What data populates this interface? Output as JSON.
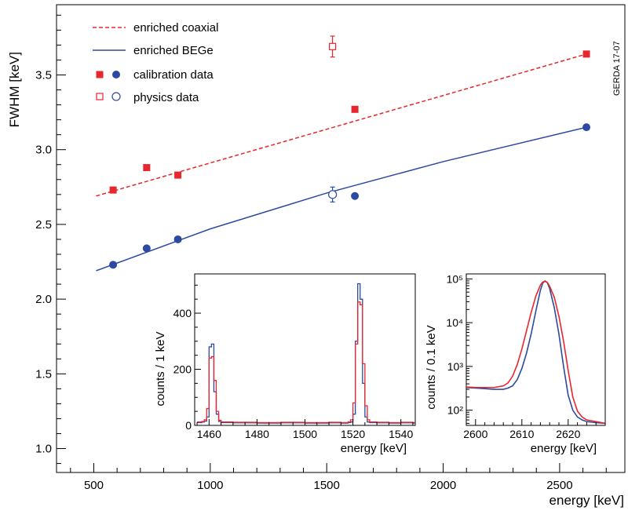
{
  "chart_data": [
    {
      "type": "scatter",
      "title": "",
      "xlabel": "energy [keV]",
      "ylabel": "FWHM [keV]",
      "xlim": [
        340,
        2780
      ],
      "ylim": [
        0.84,
        3.97
      ],
      "x_ticks": [
        500,
        1000,
        1500,
        2000,
        2500
      ],
      "x_tick_labels": [
        "500",
        "1000",
        "1500",
        "2000",
        "2500"
      ],
      "y_ticks": [
        1.0,
        1.5,
        2.0,
        2.5,
        3.0,
        3.5
      ],
      "y_tick_labels": [
        "1.0",
        "1.5",
        "2.0",
        "2.5",
        "3.0",
        "3.5"
      ],
      "stamp": "GERDA 17-07",
      "legend": {
        "position": "top-left",
        "entries": [
          {
            "label": "enriched coaxial",
            "style": "dashed-line",
            "color": "#e8262d"
          },
          {
            "label": "enriched BEGe",
            "style": "solid-line",
            "color": "#2e4aa0"
          },
          {
            "label": "calibration data",
            "style": "filled-markers"
          },
          {
            "label": "physics data",
            "style": "open-markers"
          }
        ]
      },
      "series": [
        {
          "name": "enriched coaxial fit",
          "kind": "line",
          "color": "#e8262d",
          "dash": true,
          "x": [
            510,
            2615
          ],
          "y": [
            2.69,
            3.64
          ]
        },
        {
          "name": "enriched BEGe fit",
          "kind": "curve",
          "color": "#2e4aa0",
          "x": [
            510,
            1000,
            1500,
            2000,
            2615
          ],
          "y": [
            2.19,
            2.47,
            2.71,
            2.92,
            3.15
          ]
        },
        {
          "name": "enriched coaxial calibration data",
          "marker": "square",
          "filled": true,
          "color": "#e8262d",
          "points": [
            {
              "x": 583,
              "y": 2.73
            },
            {
              "x": 727,
              "y": 2.88
            },
            {
              "x": 861,
              "y": 2.83
            },
            {
              "x": 1621,
              "y": 3.27
            },
            {
              "x": 2615,
              "y": 3.64
            }
          ]
        },
        {
          "name": "enriched BEGe calibration data",
          "marker": "circle",
          "filled": true,
          "color": "#2e4aa0",
          "points": [
            {
              "x": 583,
              "y": 2.23
            },
            {
              "x": 727,
              "y": 2.34
            },
            {
              "x": 861,
              "y": 2.4
            },
            {
              "x": 1621,
              "y": 2.69
            },
            {
              "x": 2615,
              "y": 3.15
            }
          ]
        },
        {
          "name": "enriched coaxial physics data",
          "marker": "square",
          "filled": false,
          "color": "#e8262d",
          "points": [
            {
              "x": 1525,
              "y": 3.69,
              "err": 0.07
            }
          ]
        },
        {
          "name": "enriched BEGe physics data",
          "marker": "circle",
          "filled": false,
          "color": "#2e4aa0",
          "points": [
            {
              "x": 1525,
              "y": 2.7,
              "err": 0.05
            }
          ]
        }
      ]
    },
    {
      "type": "line",
      "title": "",
      "xlabel": "energy [keV]",
      "ylabel": "counts / 1 keV",
      "xlim": [
        1454,
        1546
      ],
      "ylim": [
        0,
        540
      ],
      "x_ticks": [
        1460,
        1480,
        1500,
        1520,
        1540
      ],
      "x_tick_labels": [
        "1460",
        "1480",
        "1500",
        "1520",
        "1540"
      ],
      "y_ticks": [
        0,
        200,
        400
      ],
      "y_tick_labels": [
        "0",
        "200",
        "400"
      ],
      "series": [
        {
          "name": "enriched BEGe",
          "color": "#2e4aa0",
          "step": true,
          "x": [
            1455,
            1456,
            1457,
            1458,
            1459,
            1460,
            1461,
            1462,
            1463,
            1464,
            1465,
            1470,
            1480,
            1490,
            1500,
            1510,
            1515,
            1518,
            1519,
            1520,
            1521,
            1522,
            1523,
            1524,
            1525,
            1526,
            1527,
            1530,
            1535,
            1540,
            1545
          ],
          "y": [
            10,
            10,
            12,
            15,
            30,
            280,
            290,
            120,
            40,
            14,
            10,
            9,
            8,
            9,
            8,
            9,
            8,
            10,
            12,
            40,
            300,
            505,
            450,
            150,
            30,
            12,
            10,
            9,
            8,
            9,
            8
          ]
        },
        {
          "name": "enriched coaxial",
          "color": "#e8262d",
          "step": true,
          "x": [
            1455,
            1456,
            1457,
            1458,
            1459,
            1460,
            1461,
            1462,
            1463,
            1464,
            1465,
            1470,
            1480,
            1490,
            1500,
            1510,
            1515,
            1518,
            1519,
            1520,
            1521,
            1522,
            1523,
            1524,
            1525,
            1526,
            1527,
            1530,
            1535,
            1540,
            1545
          ],
          "y": [
            12,
            12,
            14,
            20,
            60,
            240,
            245,
            160,
            50,
            18,
            12,
            11,
            10,
            11,
            10,
            11,
            10,
            12,
            20,
            80,
            290,
            440,
            430,
            220,
            70,
            20,
            12,
            11,
            10,
            11,
            10
          ]
        }
      ]
    },
    {
      "type": "line",
      "title": "",
      "xlabel": "energy [keV]",
      "ylabel": "counts / 0.1 keV",
      "yscale": "log",
      "xlim": [
        2598,
        2628
      ],
      "ylim": [
        45,
        130000
      ],
      "x_ticks": [
        2600,
        2610,
        2620
      ],
      "x_tick_labels": [
        "2600",
        "2610",
        "2620"
      ],
      "y_ticks": [
        100,
        1000,
        10000,
        100000
      ],
      "y_tick_labels": [
        "10²",
        "10³",
        "10⁴",
        "10⁵"
      ],
      "series": [
        {
          "name": "enriched BEGe",
          "color": "#2e4aa0",
          "x": [
            2598,
            2600,
            2602,
            2604,
            2606,
            2607,
            2608,
            2609,
            2610,
            2611,
            2612,
            2613,
            2614,
            2614.5,
            2615,
            2615.5,
            2616,
            2617,
            2618,
            2619,
            2620,
            2621,
            2622,
            2623,
            2624,
            2626,
            2628
          ],
          "y": [
            330,
            320,
            310,
            300,
            300,
            320,
            360,
            500,
            900,
            2000,
            5500,
            18000,
            55000,
            80000,
            90000,
            82000,
            60000,
            22000,
            5500,
            1000,
            220,
            100,
            70,
            60,
            55,
            52,
            50
          ]
        },
        {
          "name": "enriched coaxial",
          "color": "#e8262d",
          "x": [
            2598,
            2600,
            2602,
            2604,
            2606,
            2607,
            2608,
            2609,
            2610,
            2611,
            2612,
            2613,
            2614,
            2614.5,
            2615,
            2615.5,
            2616,
            2617,
            2618,
            2619,
            2620,
            2621,
            2622,
            2623,
            2624,
            2626,
            2628
          ],
          "y": [
            340,
            330,
            330,
            330,
            360,
            420,
            600,
            1100,
            2500,
            6500,
            17000,
            40000,
            72000,
            85000,
            88000,
            83000,
            68000,
            38000,
            14000,
            3800,
            800,
            200,
            95,
            70,
            60,
            55,
            50
          ]
        }
      ]
    }
  ]
}
